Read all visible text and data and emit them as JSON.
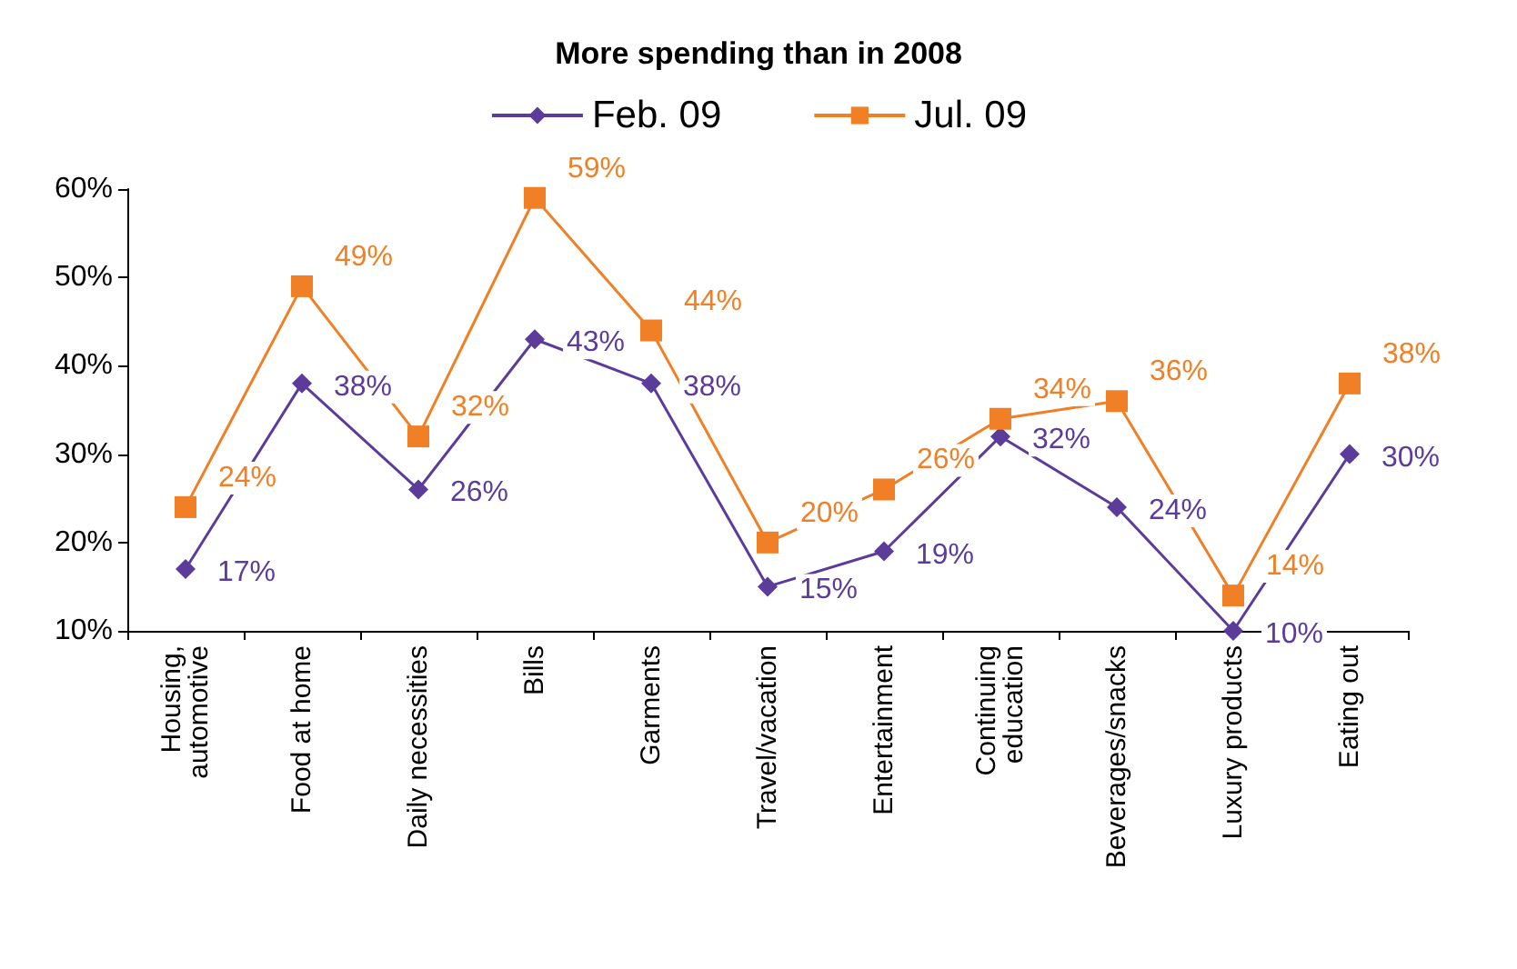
{
  "chart_data": {
    "type": "line",
    "title": "More spending than in 2008",
    "categories": [
      "Housing,\nautomotive",
      "Food at home",
      "Daily necessities",
      "Bills",
      "Garments",
      "Travel/vacation",
      "Entertainment",
      "Continuing\neducation",
      "Beverages/snacks",
      "Luxury products",
      "Eating out"
    ],
    "series": [
      {
        "name": "Feb. 09",
        "color": "#5b3c9b",
        "marker": "diamond",
        "values": [
          17,
          38,
          26,
          43,
          38,
          15,
          19,
          32,
          24,
          10,
          30
        ],
        "value_labels": [
          "17%",
          "38%",
          "26%",
          "43%",
          "38%",
          "15%",
          "19%",
          "32%",
          "24%",
          "10%",
          "30%"
        ]
      },
      {
        "name": "Jul. 09",
        "color": "#f07f25",
        "marker": "square",
        "values": [
          24,
          49,
          32,
          59,
          44,
          20,
          26,
          34,
          36,
          14,
          38
        ],
        "value_labels": [
          "24%",
          "49%",
          "32%",
          "59%",
          "44%",
          "20%",
          "26%",
          "34%",
          "36%",
          "14%",
          "38%"
        ]
      }
    ],
    "ylim": [
      10,
      60
    ],
    "yticks": [
      {
        "value": 10,
        "label": "10%"
      },
      {
        "value": 20,
        "label": "20%"
      },
      {
        "value": 30,
        "label": "30%"
      },
      {
        "value": 40,
        "label": "40%"
      },
      {
        "value": 50,
        "label": "50%"
      },
      {
        "value": 60,
        "label": "60%"
      }
    ],
    "grid": false,
    "legend": "top"
  }
}
